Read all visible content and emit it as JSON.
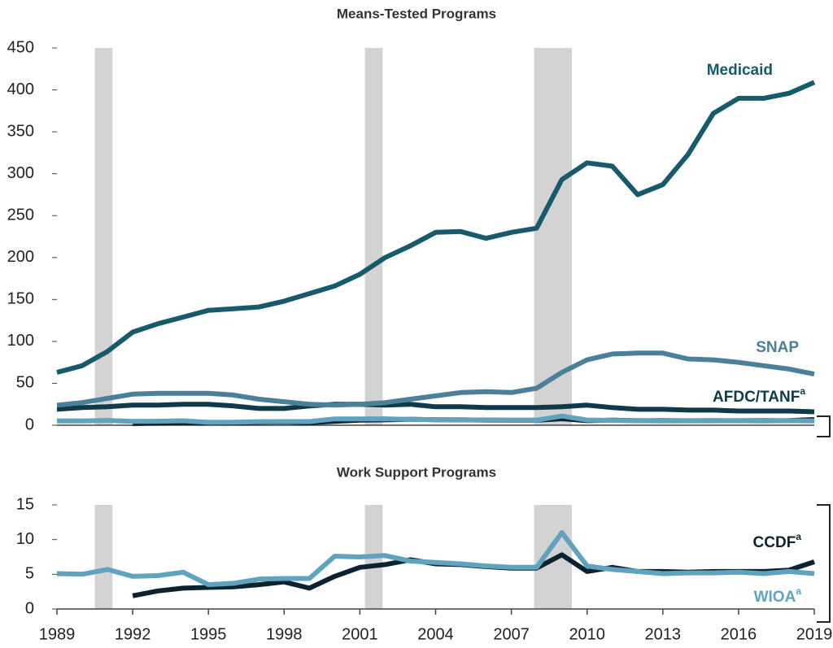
{
  "chart_data": [
    {
      "type": "line",
      "title": "Means-Tested Programs",
      "x": [
        1989,
        1990,
        1991,
        1992,
        1993,
        1994,
        1995,
        1996,
        1997,
        1998,
        1999,
        2000,
        2001,
        2002,
        2003,
        2004,
        2005,
        2006,
        2007,
        2008,
        2009,
        2010,
        2011,
        2012,
        2013,
        2014,
        2015,
        2016,
        2017,
        2018,
        2019
      ],
      "xlim": [
        1989,
        2019
      ],
      "ylim": [
        0,
        450
      ],
      "yticks": [
        0,
        50,
        100,
        150,
        200,
        250,
        300,
        350,
        400,
        450
      ],
      "shaded_periods": [
        [
          1990.5,
          1991.2
        ],
        [
          2001.2,
          2001.9
        ],
        [
          2007.9,
          2009.4
        ]
      ],
      "series": [
        {
          "color": "#0d2230",
          "values": [
            null,
            null,
            null,
            1.9,
            2.6,
            3.0,
            3.1,
            3.2,
            3.5,
            3.9,
            3.0,
            4.7,
            6.0,
            6.4,
            7.1,
            6.5,
            6.4,
            6.1,
            5.9,
            5.9,
            7.8,
            5.4,
            6.0,
            5.4,
            5.4,
            5.3,
            5.4,
            5.4,
            5.4,
            5.6,
            6.8
          ]
        },
        {
          "color": "#5fa3be",
          "values": [
            5.1,
            5.0,
            5.7,
            4.7,
            4.8,
            5.3,
            3.5,
            3.7,
            4.3,
            4.4,
            4.4,
            7.6,
            7.5,
            7.7,
            6.9,
            6.7,
            6.5,
            6.2,
            6.0,
            6.0,
            11.0,
            6.2,
            5.7,
            5.4,
            5.1,
            5.2,
            5.2,
            5.3,
            5.1,
            5.4,
            5.1
          ]
        },
        {
          "name": "AFDC/TANF",
          "name_note": "a",
          "color": "#0f3a4a",
          "values": [
            19,
            21,
            22,
            24,
            24,
            25,
            25,
            23,
            20,
            20,
            23,
            25,
            25,
            24,
            25,
            22,
            22,
            21,
            21,
            21,
            22,
            24,
            21,
            19,
            19,
            18,
            18,
            17,
            17,
            17,
            16
          ]
        },
        {
          "name": "SNAP",
          "color": "#4a8098",
          "values": [
            24,
            27,
            32,
            37,
            38,
            38,
            38,
            36,
            31,
            28,
            25,
            24,
            25,
            27,
            31,
            35,
            39,
            40,
            39,
            44,
            63,
            78,
            85,
            86,
            86,
            79,
            78,
            75,
            71,
            67,
            61
          ]
        },
        {
          "name": "Medicaid",
          "color": "#175a6c",
          "values": [
            63,
            71,
            88,
            111,
            121,
            129,
            137,
            139,
            141,
            148,
            157,
            166,
            180,
            200,
            214,
            230,
            231,
            223,
            230,
            235,
            293,
            313,
            309,
            275,
            287,
            323,
            372,
            390,
            390,
            396,
            409
          ]
        }
      ]
    },
    {
      "type": "line",
      "title": "Work Support Programs",
      "x": [
        1989,
        1990,
        1991,
        1992,
        1993,
        1994,
        1995,
        1996,
        1997,
        1998,
        1999,
        2000,
        2001,
        2002,
        2003,
        2004,
        2005,
        2006,
        2007,
        2008,
        2009,
        2010,
        2011,
        2012,
        2013,
        2014,
        2015,
        2016,
        2017,
        2018,
        2019
      ],
      "xlim": [
        1989,
        2019
      ],
      "xticks": [
        1989,
        1992,
        1995,
        1998,
        2001,
        2004,
        2007,
        2010,
        2013,
        2016,
        2019
      ],
      "ylim": [
        0,
        15
      ],
      "yticks": [
        0,
        5,
        10,
        15
      ],
      "shaded_periods": [
        [
          1990.5,
          1991.2
        ],
        [
          2001.2,
          2001.9
        ],
        [
          2007.9,
          2009.4
        ]
      ],
      "series": [
        {
          "name": "CCDF",
          "name_note": "a",
          "color": "#0d2230",
          "values": [
            null,
            null,
            null,
            1.9,
            2.6,
            3.0,
            3.1,
            3.2,
            3.5,
            3.9,
            3.0,
            4.7,
            6.0,
            6.4,
            7.1,
            6.5,
            6.4,
            6.1,
            5.9,
            5.9,
            7.8,
            5.4,
            6.0,
            5.4,
            5.4,
            5.3,
            5.4,
            5.4,
            5.4,
            5.6,
            6.8
          ]
        },
        {
          "name": "WIOA",
          "name_note": "a",
          "color": "#5fa3be",
          "values": [
            5.1,
            5.0,
            5.7,
            4.7,
            4.8,
            5.3,
            3.5,
            3.7,
            4.3,
            4.4,
            4.4,
            7.6,
            7.5,
            7.7,
            6.9,
            6.7,
            6.5,
            6.2,
            6.0,
            6.0,
            11.0,
            6.2,
            5.7,
            5.4,
            5.1,
            5.2,
            5.2,
            5.3,
            5.1,
            5.4,
            5.1
          ]
        }
      ]
    }
  ]
}
